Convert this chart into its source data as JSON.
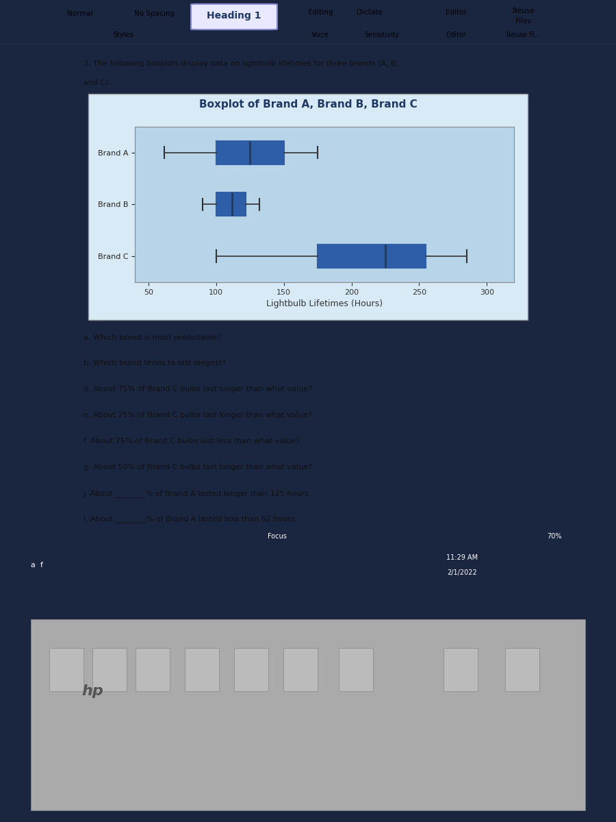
{
  "title": "Boxplot of Brand A, Brand B, Brand C",
  "xlabel": "Lightbulb Lifetimes (Hours)",
  "brands": [
    "Brand A",
    "Brand B",
    "Brand C"
  ],
  "brand_A": {
    "min": 62,
    "q1": 100,
    "median": 125,
    "q3": 150,
    "max": 175
  },
  "brand_B": {
    "min": 90,
    "q1": 100,
    "median": 112,
    "q3": 122,
    "max": 132
  },
  "brand_C": {
    "min": 100,
    "q1": 175,
    "median": 225,
    "q3": 255,
    "max": 285
  },
  "xlim": [
    40,
    320
  ],
  "xticks": [
    50,
    100,
    150,
    200,
    250,
    300
  ],
  "box_facecolor": "#5B9BD5",
  "box_edgecolor": "#2E5EA8",
  "median_color": "#1F3864",
  "whisker_color": "#333333",
  "chart_bg": "#C8DFF0",
  "chart_outer_bg": "#D8EAF5",
  "plot_inner_bg": "#B8D4E8",
  "title_color": "#1F3864",
  "label_color": "#333333",
  "title_fontsize": 11,
  "label_fontsize": 9,
  "tick_fontsize": 8,
  "brand_label_fontsize": 8,
  "screen_bg": "#1a2540",
  "word_bg": "#2a3550",
  "toolbar_bg": "#f0f0f0",
  "doc_white": "#ffffff",
  "doc_text_color": "#111111",
  "question_text_color": "#111111",
  "laptop_silver": "#c8c8c8",
  "keyboard_bg": "#aaaaaa",
  "taskbar_bg": "#1a1a2e",
  "statusbar_bg": "#2a2a4a",
  "questions": [
    "a. Which brand is most predictable?",
    "b. Which brand tends to last longest?",
    "d. About 75% of Brand C bulbs last longer than what value?",
    "e. About 25% of Brand C bulbs last longer than what value?",
    "f. About 75% of Brand C bulbs last less than what value?",
    "g. About 50% of Brand C bulbs last longer than what value?",
    "j. About ________% of Brand A lasted longer than 125 hours.",
    "l. About ________% of Brand A lasted less than 62 hours."
  ],
  "toolbar_row1": [
    "Normal",
    "No Spacing",
    "Heading 1",
    "Editing",
    "Dictate",
    "Editor",
    "Reuse",
    "Files"
  ],
  "toolbar_row2": [
    "Styles",
    "Voice",
    "Sensitivity",
    "Editor",
    "Reuse Fi..."
  ]
}
